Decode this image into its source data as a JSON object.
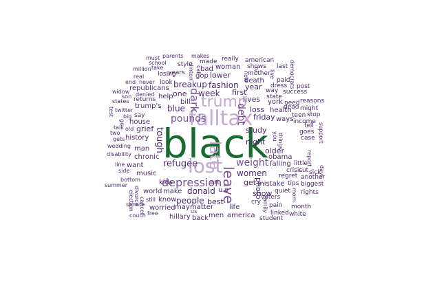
{
  "colors": {
    "background": "#ffffff",
    "dark_green": "#1a6b32",
    "dark_purple": "#4d2a6f",
    "mid_purple": "#7b5296",
    "light_purple": "#c4aad3"
  },
  "words": [
    {
      "text": "black",
      "color": "dark_green"
    },
    {
      "text": "falltax",
      "color": "light_purple"
    },
    {
      "text": "lost",
      "color": "light_purple"
    },
    {
      "text": "trump",
      "color": "light_purple"
    },
    {
      "text": "late",
      "color": "light_purple"
    },
    {
      "text": "leave",
      "color": "mid_purple"
    },
    {
      "text": "depression",
      "color": "mid_purple"
    },
    {
      "text": "weight",
      "color": "mid_purple"
    },
    {
      "text": "dark",
      "color": "mid_purple"
    },
    {
      "text": "pounds",
      "color": "mid_purple"
    },
    {
      "text": "debt",
      "color": "mid_purple"
    },
    {
      "text": "tough",
      "color": "dark_purple"
    },
    {
      "text": "refugee",
      "color": "dark_purple"
    },
    {
      "text": "donald",
      "color": "dark_purple"
    },
    {
      "text": "women",
      "color": "dark_purple"
    },
    {
      "text": "people",
      "color": "dark_purple"
    },
    {
      "text": "fashion",
      "color": "dark_purple"
    },
    {
      "text": "week",
      "color": "dark_purple"
    },
    {
      "text": "blue",
      "color": "dark_purple"
    },
    {
      "text": "breakup",
      "color": "dark_purple"
    },
    {
      "text": "night",
      "color": "dark_purple"
    },
    {
      "text": "friday",
      "color": "dark_purple"
    },
    {
      "text": "first",
      "color": "dark_purple"
    },
    {
      "text": "lives",
      "color": "dark_purple"
    },
    {
      "text": "lower",
      "color": "dark_purple"
    },
    {
      "text": "best",
      "color": "dark_purple"
    },
    {
      "text": "photo",
      "color": "dark_purple"
    },
    {
      "text": "grief",
      "color": "dark_purple"
    },
    {
      "text": "year",
      "color": "dark_purple"
    },
    {
      "text": "loss",
      "color": "dark_purple"
    },
    {
      "text": "study",
      "color": "dark_purple"
    },
    {
      "text": "get",
      "color": "dark_purple"
    },
    {
      "text": "one",
      "color": "dark_purple"
    },
    {
      "text": "older",
      "color": "dark_purple"
    },
    {
      "text": "falling",
      "color": "dark_purple"
    },
    {
      "text": "show",
      "color": "dark_purple"
    },
    {
      "text": "mistake",
      "color": "dark_purple"
    },
    {
      "text": "art",
      "color": "dark_purple"
    },
    {
      "text": "u.s",
      "color": "dark_purple"
    },
    {
      "text": "woman",
      "color": "dark_purple"
    },
    {
      "text": "bill",
      "color": "dark_purple"
    },
    {
      "text": "help",
      "color": "dark_purple"
    },
    {
      "text": "trump's",
      "color": "dark_purple"
    },
    {
      "text": "obama",
      "color": "dark_purple"
    },
    {
      "text": "ways",
      "color": "dark_purple"
    },
    {
      "text": "health",
      "color": "dark_purple"
    },
    {
      "text": "york",
      "color": "dark_purple"
    },
    {
      "text": "death",
      "color": "dark_purple"
    },
    {
      "text": "gop",
      "color": "dark_purple"
    },
    {
      "text": "bad",
      "color": "dark_purple"
    },
    {
      "text": "make",
      "color": "dark_purple"
    },
    {
      "text": "matter",
      "color": "dark_purple"
    },
    {
      "text": "history",
      "color": "dark_purple"
    },
    {
      "text": "chronic",
      "color": "dark_purple"
    },
    {
      "text": "man",
      "color": "dark_purple"
    },
    {
      "text": "kids",
      "color": "dark_purple"
    },
    {
      "text": "music",
      "color": "dark_purple"
    },
    {
      "text": "house",
      "color": "dark_purple"
    },
    {
      "text": "want",
      "color": "dark_purple"
    },
    {
      "text": "republicans",
      "color": "dark_purple"
    },
    {
      "text": "world",
      "color": "dark_purple"
    },
    {
      "text": "know",
      "color": "dark_purple"
    },
    {
      "text": "may",
      "color": "dark_purple"
    },
    {
      "text": "worried",
      "color": "dark_purple"
    },
    {
      "text": "life",
      "color": "dark_purple"
    },
    {
      "text": "america",
      "color": "dark_purple"
    },
    {
      "text": "men",
      "color": "dark_purple"
    },
    {
      "text": "back",
      "color": "dark_purple"
    },
    {
      "text": "hillary",
      "color": "dark_purple"
    },
    {
      "text": "cry",
      "color": "dark_purple"
    },
    {
      "text": "mother",
      "color": "dark_purple"
    },
    {
      "text": "really",
      "color": "dark_purple"
    },
    {
      "text": "made",
      "color": "dark_purple"
    },
    {
      "text": "years",
      "color": "dark_purple"
    },
    {
      "text": "losing",
      "color": "dark_purple"
    },
    {
      "text": "style",
      "color": "dark_purple"
    },
    {
      "text": "look",
      "color": "dark_purple"
    },
    {
      "text": "returns",
      "color": "dark_purple"
    },
    {
      "text": "say",
      "color": "dark_purple"
    },
    {
      "text": "american",
      "color": "dark_purple"
    },
    {
      "text": "shows",
      "color": "dark_purple"
    },
    {
      "text": "last",
      "color": "dark_purple"
    },
    {
      "text": "paid",
      "color": "dark_purple"
    },
    {
      "text": "dress",
      "color": "dark_purple"
    },
    {
      "text": "state",
      "color": "dark_purple"
    },
    {
      "text": "way",
      "color": "dark_purple"
    },
    {
      "text": "need",
      "color": "dark_purple"
    },
    {
      "text": "dead",
      "color": "dark_purple"
    },
    {
      "text": "post",
      "color": "dark_purple"
    },
    {
      "text": "success",
      "color": "dark_purple"
    },
    {
      "text": "reasons",
      "color": "dark_purple"
    },
    {
      "text": "might",
      "color": "dark_purple"
    },
    {
      "text": "stop",
      "color": "dark_purple"
    },
    {
      "text": "teen",
      "color": "dark_purple"
    },
    {
      "text": "income",
      "color": "dark_purple"
    },
    {
      "text": "fell",
      "color": "dark_purple"
    },
    {
      "text": "goes",
      "color": "dark_purple"
    },
    {
      "text": "crisis",
      "color": "dark_purple"
    },
    {
      "text": "case",
      "color": "dark_purple"
    },
    {
      "text": "cut",
      "color": "dark_purple"
    },
    {
      "text": "little",
      "color": "dark_purple"
    },
    {
      "text": "sick",
      "color": "dark_purple"
    },
    {
      "text": "another",
      "color": "dark_purple"
    },
    {
      "text": "tips",
      "color": "dark_purple"
    },
    {
      "text": "biggest",
      "color": "dark_purple"
    },
    {
      "text": "regret",
      "color": "dark_purple"
    },
    {
      "text": "voters",
      "color": "dark_purple"
    },
    {
      "text": "quiet",
      "color": "dark_purple"
    },
    {
      "text": "rights",
      "color": "dark_purple"
    },
    {
      "text": "student",
      "color": "dark_purple"
    },
    {
      "text": "pain",
      "color": "dark_purple"
    },
    {
      "text": "month",
      "color": "dark_purple"
    },
    {
      "text": "linked",
      "color": "dark_purple"
    },
    {
      "text": "white",
      "color": "dark_purple"
    },
    {
      "text": "parents",
      "color": "dark_purple"
    },
    {
      "text": "makes",
      "color": "dark_purple"
    },
    {
      "text": "must",
      "color": "dark_purple"
    },
    {
      "text": "school",
      "color": "dark_purple"
    },
    {
      "text": "million",
      "color": "dark_purple"
    },
    {
      "text": "take",
      "color": "dark_purple"
    },
    {
      "text": "real",
      "color": "dark_purple"
    },
    {
      "text": "end",
      "color": "dark_purple"
    },
    {
      "text": "never",
      "color": "dark_purple"
    },
    {
      "text": "widow",
      "color": "dark_purple"
    },
    {
      "text": "son",
      "color": "dark_purple"
    },
    {
      "text": "denied",
      "color": "dark_purple"
    },
    {
      "text": "states",
      "color": "dark_purple"
    },
    {
      "text": "twitter",
      "color": "dark_purple"
    },
    {
      "text": "big",
      "color": "dark_purple"
    },
    {
      "text": "talk",
      "color": "dark_purple"
    },
    {
      "text": "old",
      "color": "dark_purple"
    },
    {
      "text": "two",
      "color": "dark_purple"
    },
    {
      "text": "gets",
      "color": "dark_purple"
    },
    {
      "text": "wedding",
      "color": "dark_purple"
    },
    {
      "text": "disability",
      "color": "dark_purple"
    },
    {
      "text": "line",
      "color": "dark_purple"
    },
    {
      "text": "side",
      "color": "dark_purple"
    },
    {
      "text": "bottom",
      "color": "dark_purple"
    },
    {
      "text": "summer",
      "color": "dark_purple"
    },
    {
      "text": "still",
      "color": "dark_purple"
    },
    {
      "text": "couch",
      "color": "dark_purple"
    },
    {
      "text": "free",
      "color": "dark_purple"
    },
    {
      "text": "us",
      "color": "dark_purple"
    },
    {
      "text": "test",
      "color": "dark_purple"
    },
    {
      "text": "go",
      "color": "dark_purple"
    },
    {
      "text": "clinton",
      "color": "dark_purple"
    },
    {
      "text": "call",
      "color": "dark_purple"
    },
    {
      "text": "now",
      "color": "dark_purple"
    },
    {
      "text": "tv",
      "color": "dark_purple"
    },
    {
      "text": "live",
      "color": "dark_purple"
    },
    {
      "text": "democrats",
      "color": "dark_purple"
    },
    {
      "text": "things",
      "color": "dark_purple"
    },
    {
      "text": "you",
      "color": "dark_purple"
    },
    {
      "text": "report",
      "color": "dark_purple"
    },
    {
      "text": "days",
      "color": "dark_purple"
    },
    {
      "text": "support",
      "color": "dark_purple"
    },
    {
      "text": "mom",
      "color": "dark_purple"
    },
    {
      "text": "family",
      "color": "dark_purple"
    },
    {
      "text": "election",
      "color": "dark_purple"
    },
    {
      "text": "divorce",
      "color": "dark_purple"
    },
    {
      "text": "cancel",
      "color": "dark_purple"
    },
    {
      "text": "senate",
      "color": "dark_purple"
    }
  ]
}
